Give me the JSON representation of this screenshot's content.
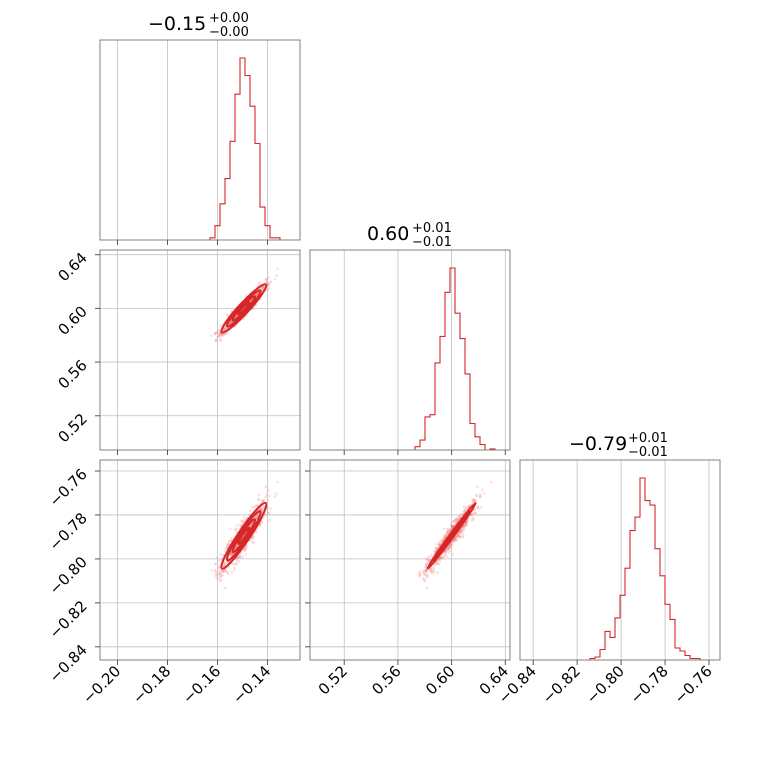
{
  "chart_data": {
    "type": "corner",
    "color": "#d62728",
    "titles": [
      {
        "value": "−0.15",
        "upper": "+0.00",
        "lower": "−0.00"
      },
      {
        "value": "0.60",
        "upper": "+0.01",
        "lower": "−0.01"
      },
      {
        "value": "−0.79",
        "upper": "+0.01",
        "lower": "−0.01"
      }
    ],
    "params": [
      {
        "range": [
          -0.207,
          -0.127
        ],
        "mean": -0.1495,
        "sd": 0.0045,
        "ticks": [
          -0.2,
          -0.18,
          -0.16,
          -0.14
        ],
        "ticklabels": [
          "−0.20",
          "−0.18",
          "−0.16",
          "−0.14"
        ]
      },
      {
        "range": [
          0.4945,
          0.6435
        ],
        "mean": 0.6,
        "sd": 0.009,
        "ticks": [
          0.52,
          0.56,
          0.6,
          0.64
        ],
        "ticklabels": [
          "0.52",
          "0.56",
          "0.60",
          "0.64"
        ]
      },
      {
        "range": [
          -0.846,
          -0.755
        ],
        "mean": -0.7895,
        "sd": 0.0075,
        "ticks": [
          -0.84,
          -0.82,
          -0.8,
          -0.78,
          -0.76
        ],
        "ticklabels": [
          "−0.84",
          "−0.82",
          "−0.80",
          "−0.78",
          "−0.76"
        ]
      }
    ],
    "correlations": {
      "0-1": 0.95,
      "0-2": 0.95,
      "1-2": 0.995
    },
    "histogram_bins": 40,
    "grid": true
  }
}
